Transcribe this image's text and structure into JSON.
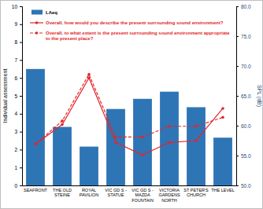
{
  "chart_data": {
    "type": "bar",
    "categories": [
      "SEAFRONT",
      "THE OLD STEINE",
      "ROYAL PAVILION",
      "VIC GD S - STATUE",
      "VIC GD S - MAZDA FOUNTAIN",
      "VICTORIA GARDENS NORTH",
      "ST PETER'S CHURCH",
      "THE LEVEL"
    ],
    "series": [
      {
        "name": "LAeq",
        "type": "bar",
        "axis": "y2",
        "color": "#2e75b6",
        "values": [
          69.5,
          59.8,
          56.5,
          62.8,
          64.5,
          65.7,
          63.1,
          58.0
        ]
      },
      {
        "name": "Overall, how would you describe the present surrounding sound environment?",
        "type": "line",
        "color": "#e3262b",
        "marker": "circle",
        "line_style": "solid",
        "values": [
          2.3,
          3.4,
          6.0,
          2.4,
          1.7,
          2.4,
          2.5,
          4.3
        ]
      },
      {
        "name": "Overall, to what extent is the present surrounding sound environment appropriate to the present place?",
        "type": "line",
        "color": "#e3262b",
        "marker": "circle",
        "line_style": "dashed",
        "values": [
          2.3,
          3.6,
          6.2,
          2.7,
          2.7,
          3.3,
          3.3,
          3.8
        ]
      }
    ],
    "y_label": "Individual assessment",
    "y2_label": "SPL (dB)",
    "ylim": [
      0,
      10
    ],
    "yticks": [
      0,
      1,
      2,
      3,
      4,
      5,
      6,
      7,
      8,
      9,
      10
    ],
    "y2lim": [
      50,
      80
    ],
    "y2ticks": [
      {
        "value": 50,
        "label": "50.0"
      },
      {
        "value": 55,
        "label": "55.0"
      },
      {
        "value": 60,
        "label": "60.0"
      },
      {
        "value": 65,
        "label": "65.0"
      },
      {
        "value": 70,
        "label": "70.0"
      },
      {
        "value": 75,
        "label": "75.0"
      },
      {
        "value": 80,
        "label": "80.0"
      }
    ],
    "legend": "upper left"
  }
}
